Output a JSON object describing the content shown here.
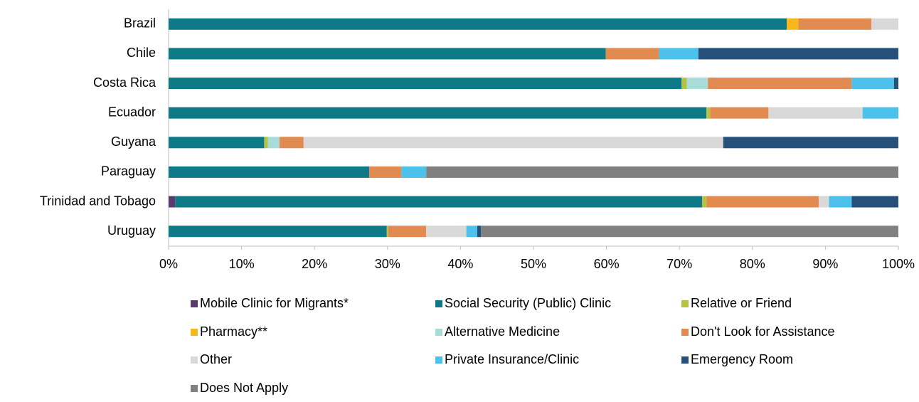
{
  "chart_data": {
    "type": "stacked_barh",
    "categories": [
      "Brazil",
      "Chile",
      "Costa Rica",
      "Ecuador",
      "Guyana",
      "Paraguay",
      "Trinidad and Tobago",
      "Uruguay"
    ],
    "series": [
      {
        "name": "Mobile Clinic for Migrants*",
        "color": "#5b3a6e",
        "values": [
          0,
          0,
          0,
          0,
          0,
          0,
          0.9,
          0
        ]
      },
      {
        "name": "Social Security (Public) Clinic",
        "color": "#0e7a87",
        "values": [
          84.7,
          59.9,
          70.3,
          73.7,
          13.1,
          27.5,
          72.2,
          29.9
        ]
      },
      {
        "name": "Relative or Friend",
        "color": "#b5c244",
        "values": [
          0,
          0,
          0.7,
          0.5,
          0.5,
          0,
          0.6,
          0.2
        ]
      },
      {
        "name": "Pharmacy**",
        "color": "#f6b81a",
        "values": [
          1.6,
          0,
          0,
          0,
          0,
          0,
          0,
          0
        ]
      },
      {
        "name": "Alternative Medicine",
        "color": "#a8dcd8",
        "values": [
          0,
          0,
          2.9,
          0,
          1.6,
          0,
          0,
          0
        ]
      },
      {
        "name": "Don't Look for Assistance",
        "color": "#e28b50",
        "values": [
          10.0,
          7.3,
          19.7,
          8.0,
          3.3,
          4.4,
          15.4,
          5.2
        ]
      },
      {
        "name": "Other",
        "color": "#d9d9d9",
        "values": [
          3.7,
          0,
          0,
          12.9,
          57.5,
          0,
          1.4,
          5.5
        ]
      },
      {
        "name": "Private Insurance/Clinic",
        "color": "#4bc1ec",
        "values": [
          0,
          5.4,
          5.8,
          4.9,
          0,
          3.4,
          3.1,
          1.5
        ]
      },
      {
        "name": "Emergency Room",
        "color": "#25507a",
        "values": [
          0,
          27.4,
          0.6,
          0,
          24.0,
          0,
          6.4,
          0.5
        ]
      },
      {
        "name": "Does Not Apply",
        "color": "#808080",
        "values": [
          0,
          0,
          0,
          0,
          0,
          64.7,
          0,
          57.2
        ]
      }
    ],
    "xlim": [
      0,
      100
    ],
    "xticks": [
      {
        "value": 0,
        "label": "0%"
      },
      {
        "value": 10,
        "label": "10%"
      },
      {
        "value": 20,
        "label": "20%"
      },
      {
        "value": 30,
        "label": "30%"
      },
      {
        "value": 40,
        "label": "40%"
      },
      {
        "value": 50,
        "label": "50%"
      },
      {
        "value": 60,
        "label": "60%"
      },
      {
        "value": 70,
        "label": "70%"
      },
      {
        "value": 80,
        "label": "80%"
      },
      {
        "value": 90,
        "label": "90%"
      },
      {
        "value": 100,
        "label": "100%"
      }
    ]
  }
}
